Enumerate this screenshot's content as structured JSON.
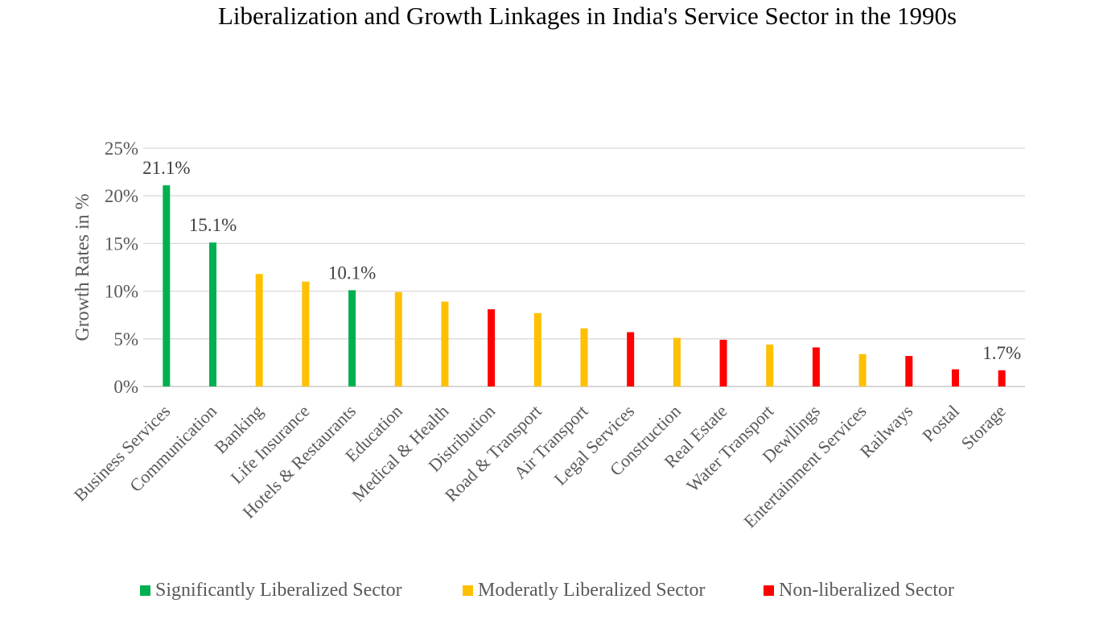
{
  "chart_data": {
    "type": "bar",
    "title": "Liberalization and Growth Linkages in India's Service Sector in the 1990s",
    "ylabel": "Growth Rates in %",
    "xlabel": "",
    "ylim": [
      0,
      25
    ],
    "y_ticks": [
      "0%",
      "5%",
      "10%",
      "15%",
      "20%",
      "25%"
    ],
    "grid": true,
    "legend_position": "bottom",
    "categories": [
      "Business Services",
      "Communication",
      "Banking",
      "Life Insurance",
      "Hotels & Restaurants",
      "Education",
      "Medical & Health",
      "Distribution",
      "Road & Transport",
      "Air Transport",
      "Legal Services",
      "Construction",
      "Real Estate",
      "Water Transport",
      "Dewllings",
      "Entertainment Services",
      "Railways",
      "Postal",
      "Storage"
    ],
    "values": [
      21.1,
      15.1,
      11.8,
      11.0,
      10.1,
      9.9,
      8.9,
      8.1,
      7.7,
      6.1,
      5.7,
      5.1,
      4.9,
      4.4,
      4.1,
      3.4,
      3.2,
      1.8,
      1.7
    ],
    "groups": [
      "sig",
      "sig",
      "mod",
      "mod",
      "sig",
      "mod",
      "mod",
      "non",
      "mod",
      "mod",
      "non",
      "mod",
      "non",
      "mod",
      "non",
      "mod",
      "non",
      "non",
      "non"
    ],
    "data_labels": {
      "0": "21.1%",
      "1": "15.1%",
      "4": "10.1%",
      "18": "1.7%"
    },
    "legend": [
      {
        "key": "sig",
        "label": "Significantly Liberalized Sector",
        "color": "#00b050"
      },
      {
        "key": "mod",
        "label": "Moderatly Liberalized Sector",
        "color": "#ffc000"
      },
      {
        "key": "non",
        "label": "Non-liberalized Sector",
        "color": "#ff0000"
      }
    ]
  }
}
